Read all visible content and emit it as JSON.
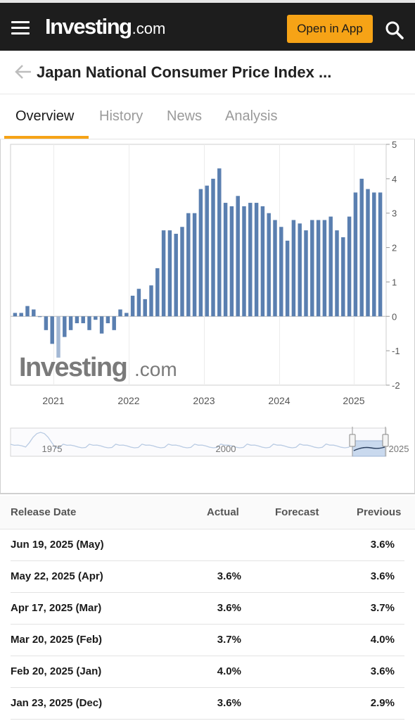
{
  "header": {
    "logo_main": "Investing",
    "logo_dot": ".com",
    "open_app_label": "Open in App"
  },
  "page": {
    "title": "Japan National Consumer Price Index ..."
  },
  "tabs": [
    {
      "label": "Overview",
      "active": true
    },
    {
      "label": "History",
      "active": false
    },
    {
      "label": "News",
      "active": false
    },
    {
      "label": "Analysis",
      "active": false
    }
  ],
  "chart_data": {
    "type": "bar",
    "unit": "%",
    "bar_color": "#5a7fb0",
    "highlight_color": "#a3b8d4",
    "ylim": [
      -2,
      5
    ],
    "y_ticks": [
      "5",
      "4",
      "3",
      "2",
      "1",
      "0",
      "-1",
      "-2"
    ],
    "x_ticks": [
      "2021",
      "2022",
      "2023",
      "2024",
      "2025"
    ],
    "values": [
      0.1,
      0.1,
      0.3,
      0.2,
      0.0,
      -0.4,
      -0.8,
      -1.2,
      -0.6,
      -0.4,
      -0.2,
      -0.2,
      -0.4,
      -0.1,
      -0.5,
      -0.2,
      -0.4,
      0.2,
      0.1,
      0.6,
      0.8,
      0.5,
      0.9,
      1.4,
      2.5,
      2.5,
      2.4,
      2.6,
      3.0,
      3.0,
      3.7,
      3.8,
      4.0,
      4.3,
      3.3,
      3.2,
      3.5,
      3.2,
      3.3,
      3.3,
      3.2,
      3.0,
      2.8,
      2.6,
      2.2,
      2.8,
      2.7,
      2.5,
      2.8,
      2.8,
      2.8,
      2.9,
      2.5,
      2.3,
      2.9,
      3.6,
      4.0,
      3.7,
      3.6,
      3.6
    ],
    "watermark_main": "Investing",
    "watermark_dot": ".com",
    "navigator_labels": [
      "1975",
      "2000",
      "2025"
    ]
  },
  "table": {
    "headers": {
      "date": "Release Date",
      "actual": "Actual",
      "forecast": "Forecast",
      "previous": "Previous"
    },
    "rows": [
      {
        "date": "Jun 19, 2025 (May)",
        "actual": "",
        "forecast": "",
        "previous": "3.6%"
      },
      {
        "date": "May 22, 2025 (Apr)",
        "actual": "3.6%",
        "forecast": "",
        "previous": "3.6%"
      },
      {
        "date": "Apr 17, 2025 (Mar)",
        "actual": "3.6%",
        "forecast": "",
        "previous": "3.7%"
      },
      {
        "date": "Mar 20, 2025 (Feb)",
        "actual": "3.7%",
        "forecast": "",
        "previous": "4.0%"
      },
      {
        "date": "Feb 20, 2025 (Jan)",
        "actual": "4.0%",
        "forecast": "",
        "previous": "3.6%"
      },
      {
        "date": "Jan 23, 2025 (Dec)",
        "actual": "3.6%",
        "forecast": "",
        "previous": "2.9%"
      }
    ]
  }
}
